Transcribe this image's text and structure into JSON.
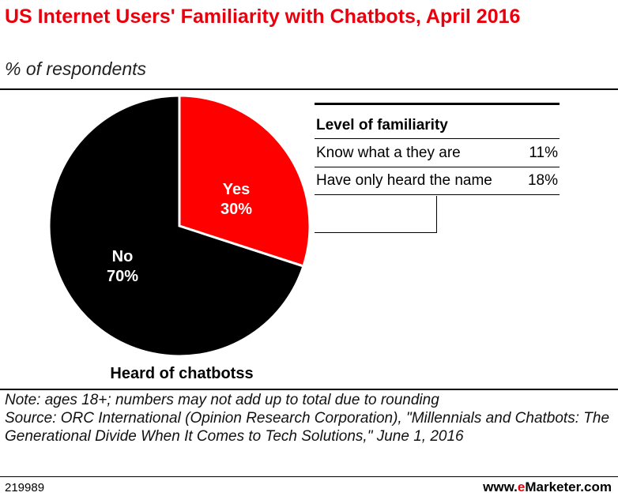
{
  "header": {
    "title": "US Internet Users' Familiarity with Chatbots, April 2016",
    "subtitle": "% of respondents"
  },
  "chart_data": {
    "type": "pie",
    "title": "US Internet Users' Familiarity with Chatbots, April 2016",
    "subtitle": "% of respondents",
    "caption": "Heard of chatbotss",
    "slices": [
      {
        "label": "Yes",
        "value": 30,
        "value_label": "30%",
        "color": "#ff0000"
      },
      {
        "label": "No",
        "value": 70,
        "value_label": "70%",
        "color": "#000000"
      }
    ],
    "breakdown": {
      "heading": "Level of familiarity",
      "rows": [
        {
          "label": "Know what a they are",
          "value": 11,
          "value_label": "11%"
        },
        {
          "label": "Have only heard the name",
          "value": 18,
          "value_label": "18%"
        }
      ]
    }
  },
  "notes": {
    "note": "Note: ages 18+; numbers may not add up to total due to rounding",
    "source": "Source: ORC International (Opinion Research Corporation), \"Millennials and Chatbots: The Generational Divide When It Comes to Tech Solutions,\" June 1, 2016"
  },
  "footer": {
    "id": "219989",
    "brand_prefix": "www.",
    "brand_e": "e",
    "brand_rest": "Marketer.com"
  }
}
